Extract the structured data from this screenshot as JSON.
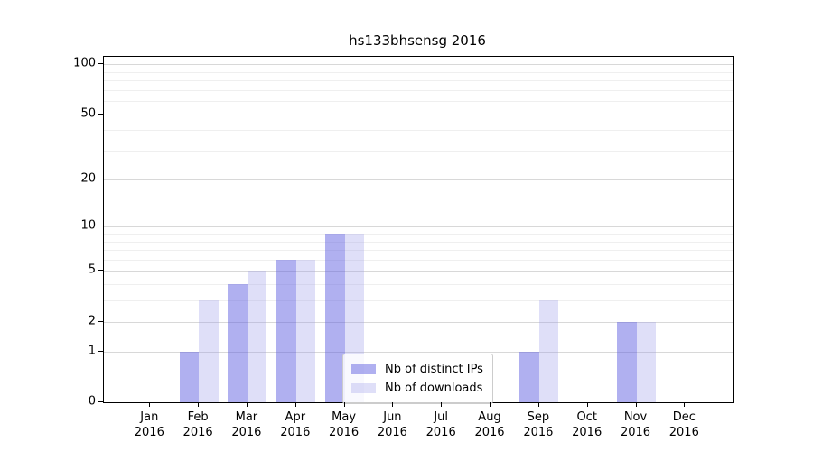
{
  "title": "hs133bhsensg 2016",
  "chart_data": {
    "type": "bar",
    "categories": [
      "Jan",
      "Feb",
      "Mar",
      "Apr",
      "May",
      "Jun",
      "Jul",
      "Aug",
      "Sep",
      "Oct",
      "Nov",
      "Dec"
    ],
    "year": "2016",
    "series": [
      {
        "name": "Nb of distinct IPs",
        "values": [
          0,
          1,
          4,
          6,
          9,
          0,
          0,
          0,
          1,
          0,
          2,
          0
        ],
        "fill": "rgba(90,90,224,0.48)"
      },
      {
        "name": "Nb of downloads",
        "values": [
          0,
          3,
          5,
          6,
          9,
          0,
          0,
          0,
          3,
          0,
          2,
          0
        ],
        "fill": "rgba(154,154,234,0.32)"
      }
    ],
    "yscale": "log1p",
    "ylim": [
      0,
      110
    ],
    "yticks": [
      0,
      1,
      2,
      5,
      10,
      20,
      50,
      100
    ],
    "minor_yticks": [
      3,
      4,
      6,
      7,
      8,
      9,
      30,
      40,
      60,
      70,
      80,
      90
    ],
    "grid": true,
    "legend_position": "lower center",
    "colors": {
      "major_grid": "#d8d8d8",
      "minor_grid": "#efefef",
      "spine": "#000000",
      "legend_border": "#cccccc",
      "text": "#000000"
    }
  }
}
